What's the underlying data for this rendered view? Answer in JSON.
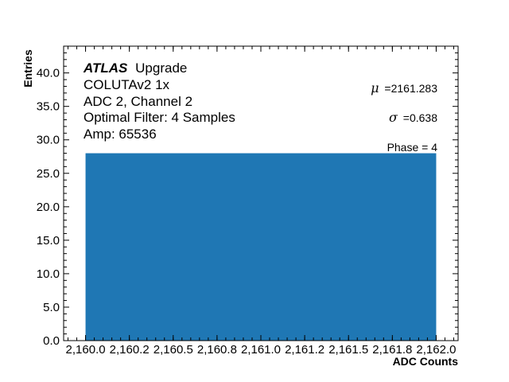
{
  "chart_data": {
    "type": "bar",
    "x_ticks": [
      "2,160.0",
      "2,160.2",
      "2,160.5",
      "2,160.8",
      "2,161.0",
      "2,161.2",
      "2,161.5",
      "2,161.8",
      "2,162.0"
    ],
    "x_tick_values": [
      2160.0,
      2160.25,
      2160.5,
      2160.75,
      2161.0,
      2161.25,
      2161.5,
      2161.75,
      2162.0
    ],
    "xlim": [
      2159.875,
      2162.125
    ],
    "y_ticks": [
      "0.0",
      "5.0",
      "10.0",
      "15.0",
      "20.0",
      "25.0",
      "30.0",
      "35.0",
      "40.0"
    ],
    "ylim": [
      0,
      44
    ],
    "bars": [
      {
        "x_start": 2160.0,
        "x_end": 2162.0,
        "value": 28
      }
    ],
    "bar_color": "#1f77b4",
    "xlabel": "ADC Counts",
    "ylabel": "Entries",
    "annotations": {
      "experiment": "ATLAS",
      "experiment_suffix": "Upgrade",
      "lines": [
        "COLUTAv2 1x",
        "ADC 2, Channel 2",
        "Optimal Filter: 4 Samples",
        "Amp: 65536"
      ]
    },
    "stats": {
      "mu_symbol": "μ",
      "mu_text": "=2161.283",
      "sigma_symbol": "σ",
      "sigma_text": "=0.638",
      "phase_text": "Phase = 4"
    }
  }
}
